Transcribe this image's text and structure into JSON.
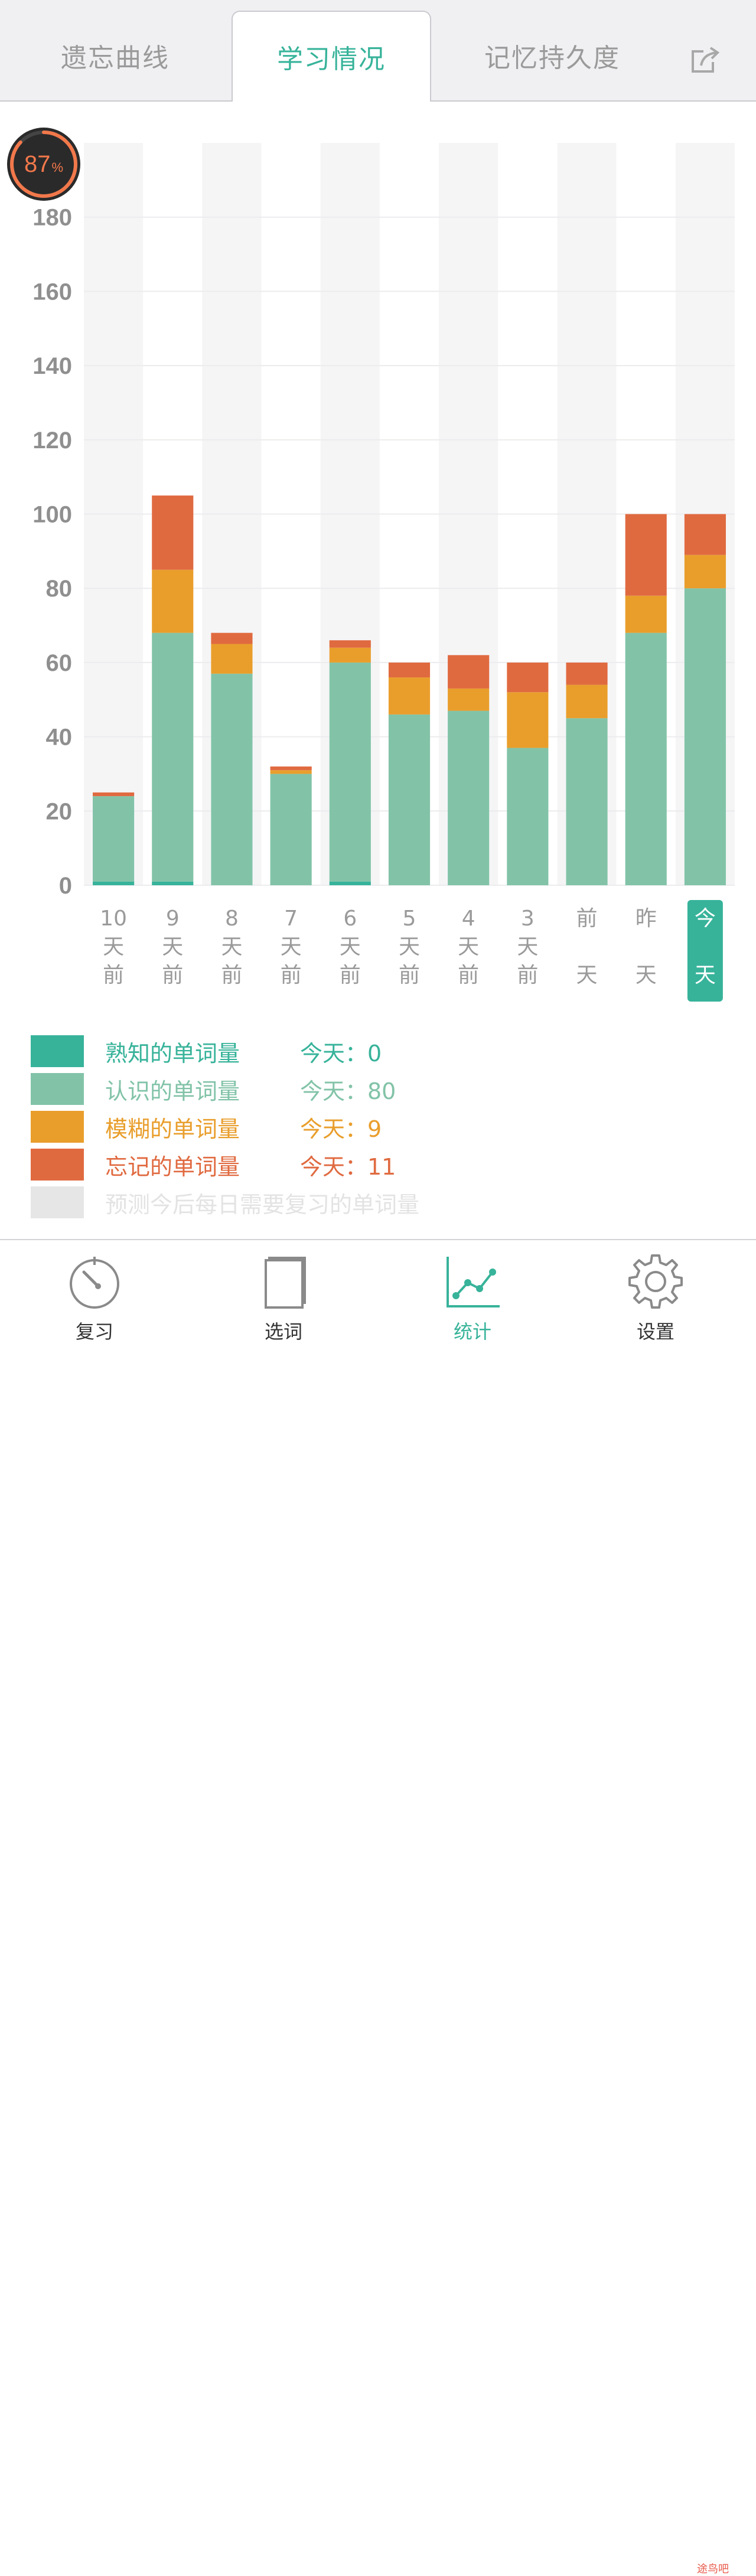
{
  "tabs": [
    {
      "label": "遗忘曲线",
      "active": false
    },
    {
      "label": "学习情况",
      "active": true
    },
    {
      "label": "记忆持久度",
      "active": false
    }
  ],
  "share_icon": "share-icon",
  "progress": {
    "value": 87,
    "unit": "%"
  },
  "chart_data": {
    "type": "bar",
    "stacked": true,
    "categories": [
      "10天前",
      "9天前",
      "8天前",
      "7天前",
      "6天前",
      "5天前",
      "4天前",
      "3天前",
      "前天",
      "昨天",
      "今天"
    ],
    "category_labels": [
      [
        "10",
        "天",
        "前"
      ],
      [
        "9",
        "天",
        "前"
      ],
      [
        "8",
        "天",
        "前"
      ],
      [
        "7",
        "天",
        "前"
      ],
      [
        "6",
        "天",
        "前"
      ],
      [
        "5",
        "天",
        "前"
      ],
      [
        "4",
        "天",
        "前"
      ],
      [
        "3",
        "天",
        "前"
      ],
      [
        "前",
        "",
        "天"
      ],
      [
        "昨",
        "",
        "天"
      ],
      [
        "今",
        "",
        "天"
      ]
    ],
    "highlighted_category": "今天",
    "series": [
      {
        "name": "熟知的单词量",
        "color": "#37b39a",
        "values": [
          1,
          1,
          0,
          0,
          1,
          0,
          0,
          0,
          0,
          0,
          0
        ]
      },
      {
        "name": "认识的单词量",
        "color": "#82c3a8",
        "values": [
          23,
          67,
          57,
          30,
          59,
          46,
          47,
          37,
          45,
          68,
          80
        ]
      },
      {
        "name": "模糊的单词量",
        "color": "#e99e2c",
        "values": [
          0,
          17,
          8,
          1,
          4,
          10,
          6,
          15,
          9,
          10,
          9
        ]
      },
      {
        "name": "忘记的单词量",
        "color": "#e06a40",
        "values": [
          1,
          20,
          3,
          1,
          2,
          4,
          9,
          8,
          6,
          22,
          11
        ]
      }
    ],
    "ylim": [
      0,
      200
    ],
    "yticks": [
      0,
      20,
      40,
      60,
      80,
      100,
      120,
      140,
      160,
      180
    ],
    "grid": true
  },
  "legend": [
    {
      "label": "熟知的单词量",
      "value": "今天：0",
      "color": "#37b39a",
      "text_color": "#37b39a"
    },
    {
      "label": "认识的单词量",
      "value": "今天：80",
      "color": "#82c3a8",
      "text_color": "#82c3a8"
    },
    {
      "label": "模糊的单词量",
      "value": "今天：9",
      "color": "#e99e2c",
      "text_color": "#e99e2c"
    },
    {
      "label": "忘记的单词量",
      "value": "今天：11",
      "color": "#e06a40",
      "text_color": "#e06a40"
    },
    {
      "label": "预测今后每日需要复习的单词量",
      "value": "",
      "color": "#e6e6e6",
      "text_color": "#e3e3e3"
    }
  ],
  "bottom_nav": [
    {
      "label": "复习",
      "icon": "timer-icon",
      "active": false
    },
    {
      "label": "选词",
      "icon": "book-icon",
      "active": false
    },
    {
      "label": "统计",
      "icon": "line-chart-icon",
      "active": true
    },
    {
      "label": "设置",
      "icon": "gear-icon",
      "active": false
    }
  ],
  "watermark": "途鸟吧"
}
